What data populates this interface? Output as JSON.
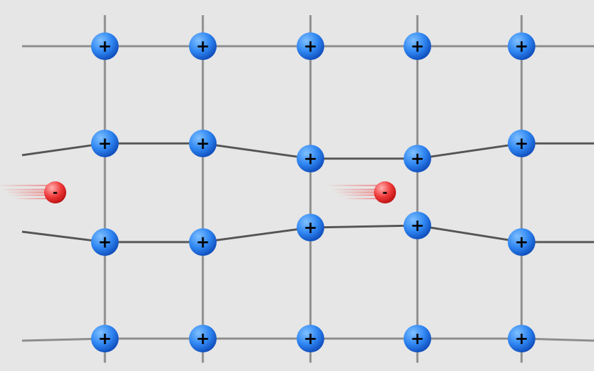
{
  "diagram": {
    "ion_sign": "+",
    "electron_sign": "-",
    "colors": {
      "background": "#e6e6e6",
      "grid_line": "#8c8c8c",
      "bond_line": "#555555",
      "ion_light": "#7fc0ff",
      "ion_mid": "#2f86f2",
      "ion_dark": "#0c49b8",
      "electron_light": "#ffb0b0",
      "electron_mid": "#f03a3a",
      "electron_dark": "#b80f0f",
      "trail": "#f05050"
    },
    "lattice": {
      "rows": 4,
      "columns": 5,
      "ion_count": 20,
      "electron_count": 2
    }
  }
}
